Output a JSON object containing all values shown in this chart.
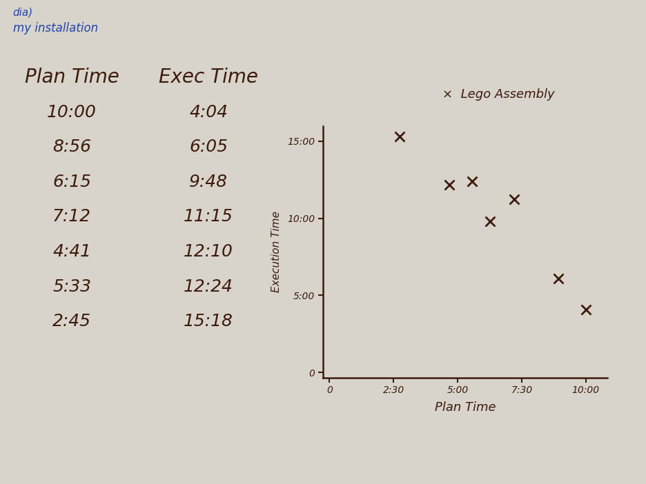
{
  "bg_color": "#d8d4cc",
  "bg_top": "#d0ccc4",
  "table_title_plan": "Plan Time",
  "table_title_exec": "Exec Time",
  "plan_times": [
    "10:00",
    "8:56",
    "6:15",
    "7:12",
    "4:41",
    "5:33",
    "2:45"
  ],
  "exec_times": [
    "4:04",
    "6:05",
    "9:48",
    "11:15",
    "12:10",
    "12:24",
    "15:18"
  ],
  "plan_minutes": [
    600,
    536,
    375,
    432,
    281,
    333,
    165
  ],
  "exec_minutes": [
    244,
    365,
    588,
    675,
    730,
    744,
    918
  ],
  "chart_title": "Lego Assembly",
  "x_label": "Plan Time",
  "y_label": "Execution Time",
  "x_ticks": [
    0,
    150,
    300,
    450,
    600
  ],
  "x_tick_labels": [
    "0",
    "2:30",
    "5:00",
    "7:30",
    "10:00"
  ],
  "y_ticks": [
    0,
    300,
    600,
    900
  ],
  "y_tick_labels": [
    "0",
    "5:00",
    "10:00",
    "15:00"
  ],
  "ink_color": "#3d1a0a",
  "blue_color": "#2244aa",
  "marker_size": 10,
  "marker_lw": 2.0,
  "top_note": "my installation",
  "top_prefix": "dia)"
}
